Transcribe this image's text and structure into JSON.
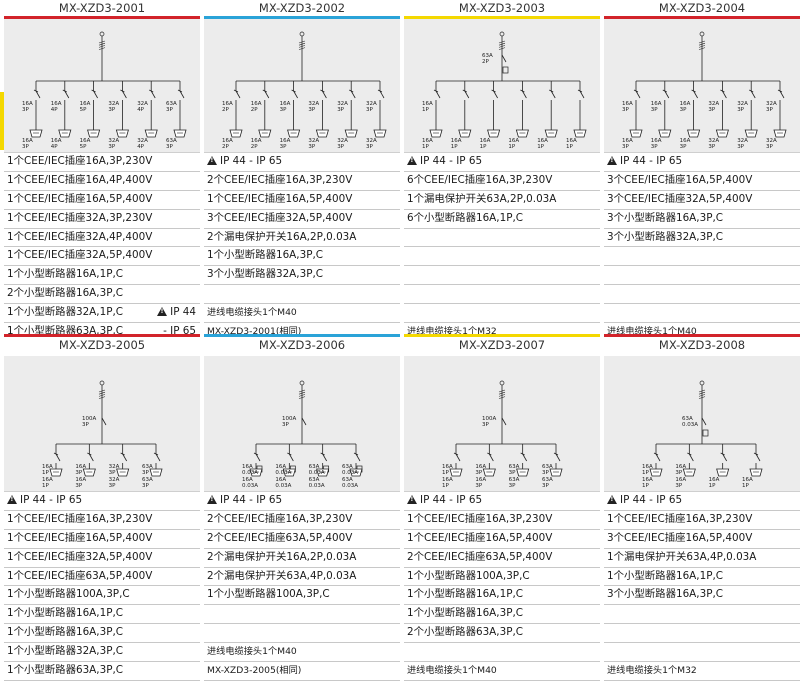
{
  "colors": {
    "red": "#d2232a",
    "blue": "#2aa3d8",
    "yellow": "#f4d800",
    "panel": "#ececec"
  },
  "icons": {
    "warning": "warning-triangle-icon"
  },
  "products": [
    {
      "code": "MX-XZD3-2001",
      "rows": [
        {
          "text": "1个CEE/IEC插座16A,3P,230V"
        },
        {
          "text": "1个CEE/IEC插座16A,4P,400V"
        },
        {
          "text": "1个CEE/IEC插座16A,5P,400V"
        },
        {
          "text": "1个CEE/IEC插座32A,3P,230V"
        },
        {
          "text": "1个CEE/IEC插座32A,4P,400V"
        },
        {
          "text": "1个CEE/IEC插座32A,5P,400V"
        },
        {
          "text": "1个小型断路器16A,1P,C"
        },
        {
          "text": "2个小型断路器16A,3P,C"
        },
        {
          "text": "1个小型断路器32A,1P,C",
          "right": "IP 44",
          "right_icon": true
        },
        {
          "text": "1个小型断路器63A,3P,C",
          "right": "- IP 65"
        }
      ],
      "diagram": {
        "type": "a",
        "branch_labels": [
          "16A 3P",
          "16A 4P",
          "16A 5P",
          "32A 3P",
          "32A 4P",
          "63A 3P"
        ]
      }
    },
    {
      "code": "MX-XZD3-2002",
      "rows": [
        {
          "text": "IP 44 - IP 65",
          "icon": true
        },
        {
          "text": "2个CEE/IEC插座16A,3P,230V"
        },
        {
          "text": "1个CEE/IEC插座16A,5P,400V"
        },
        {
          "text": "3个CEE/IEC插座32A,5P,400V"
        },
        {
          "text": "2个漏电保护开关16A,2P,0.03A"
        },
        {
          "text": "1个小型断路器16A,3P,C"
        },
        {
          "text": "3个小型断路器32A,3P,C"
        },
        {
          "text": ""
        },
        {
          "text": "进线电缆接头1个M40",
          "small": true
        },
        {
          "text": "MX-XZD3-2001(相同)",
          "small": true
        }
      ],
      "diagram": {
        "type": "b",
        "branch_labels": [
          "16A 2P",
          "16A 2P",
          "16A 3P",
          "32A 3P",
          "32A 3P",
          "32A 3P"
        ]
      }
    },
    {
      "code": "MX-XZD3-2003",
      "rows": [
        {
          "text": "IP 44 - IP 65",
          "icon": true
        },
        {
          "text": "6个CEE/IEC插座16A,3P,230V"
        },
        {
          "text": "1个漏电保护开关63A,2P,0.03A"
        },
        {
          "text": "6个小型断路器16A,1P,C"
        },
        {
          "text": ""
        },
        {
          "text": ""
        },
        {
          "text": ""
        },
        {
          "text": ""
        },
        {
          "text": ""
        },
        {
          "text": "进线电缆接头1个M32",
          "small": true
        }
      ],
      "diagram": {
        "type": "c",
        "top_label": "63A 2P",
        "branch_labels": [
          "16A 1P",
          "",
          "",
          "",
          "",
          ""
        ]
      }
    },
    {
      "code": "MX-XZD3-2004",
      "rows": [
        {
          "text": "IP 44 - IP 65",
          "icon": true
        },
        {
          "text": "3个CEE/IEC插座16A,5P,400V"
        },
        {
          "text": "3个CEE/IEC插座32A,5P,400V"
        },
        {
          "text": "3个小型断路器16A,3P,C"
        },
        {
          "text": "3个小型断路器32A,3P,C"
        },
        {
          "text": ""
        },
        {
          "text": ""
        },
        {
          "text": ""
        },
        {
          "text": ""
        },
        {
          "text": "进线电缆接头1个M40",
          "small": true
        }
      ],
      "diagram": {
        "type": "d",
        "branch_labels": [
          "16A 3P",
          "16A 3P",
          "16A 3P",
          "32A 3P",
          "32A 3P",
          "32A 3P"
        ]
      }
    },
    {
      "code": "MX-XZD3-2005",
      "rows": [
        {
          "text": "IP 44 - IP 65",
          "icon": true
        },
        {
          "text": "1个CEE/IEC插座16A,3P,230V"
        },
        {
          "text": "1个CEE/IEC插座16A,5P,400V"
        },
        {
          "text": "1个CEE/IEC插座32A,5P,400V"
        },
        {
          "text": "1个CEE/IEC插座63A,5P,400V"
        },
        {
          "text": "1个小型断路器100A,3P,C"
        },
        {
          "text": "1个小型断路器16A,1P,C"
        },
        {
          "text": "1个小型断路器16A,3P,C"
        },
        {
          "text": "1个小型断路器32A,3P,C"
        },
        {
          "text": "1个小型断路器63A,3P,C"
        }
      ],
      "diagram": {
        "type": "e",
        "top_label": "100A 3P",
        "branch_labels": [
          "16A 1P",
          "16A 3P",
          "32A 3P",
          "63A 3P"
        ]
      }
    },
    {
      "code": "MX-XZD3-2006",
      "rows": [
        {
          "text": "IP 44 - IP 65",
          "icon": true
        },
        {
          "text": "2个CEE/IEC插座16A,3P,230V"
        },
        {
          "text": "2个CEE/IEC插座63A,5P,400V"
        },
        {
          "text": "2个漏电保护开关16A,2P,0.03A"
        },
        {
          "text": "2个漏电保护开关63A,4P,0.03A"
        },
        {
          "text": "1个小型断路器100A,3P,C"
        },
        {
          "text": ""
        },
        {
          "text": ""
        },
        {
          "text": "进线电缆接头1个M40",
          "small": true
        },
        {
          "text": "MX-XZD3-2005(相同)",
          "small": true
        }
      ],
      "diagram": {
        "type": "f",
        "top_label": "100A 3P",
        "branch_labels": [
          "16A 0.03A",
          "16A 0.03A",
          "63A 0.03A",
          "63A 0.03A"
        ]
      }
    },
    {
      "code": "MX-XZD3-2007",
      "rows": [
        {
          "text": "IP 44 - IP 65",
          "icon": true
        },
        {
          "text": "1个CEE/IEC插座16A,3P,230V"
        },
        {
          "text": "1个CEE/IEC插座16A,5P,400V"
        },
        {
          "text": "2个CEE/IEC插座63A,5P,400V"
        },
        {
          "text": "1个小型断路器100A,3P,C"
        },
        {
          "text": "1个小型断路器16A,1P,C"
        },
        {
          "text": "1个小型断路器16A,3P,C"
        },
        {
          "text": "2个小型断路器63A,3P,C"
        },
        {
          "text": ""
        },
        {
          "text": "进线电缆接头1个M40",
          "small": true
        }
      ],
      "diagram": {
        "type": "g",
        "top_label": "100A 3P",
        "branch_labels": [
          "16A 1P",
          "16A 3P",
          "63A 3P",
          "63A 3P"
        ]
      }
    },
    {
      "code": "MX-XZD3-2008",
      "rows": [
        {
          "text": "IP 44 - IP 65",
          "icon": true
        },
        {
          "text": "1个CEE/IEC插座16A,3P,230V"
        },
        {
          "text": "3个CEE/IEC插座16A,5P,400V"
        },
        {
          "text": "1个漏电保护开关63A,4P,0.03A"
        },
        {
          "text": "1个小型断路器16A,1P,C"
        },
        {
          "text": "3个小型断路器16A,3P,C"
        },
        {
          "text": ""
        },
        {
          "text": ""
        },
        {
          "text": ""
        },
        {
          "text": "进线电缆接头1个M32",
          "small": true
        }
      ],
      "diagram": {
        "type": "h",
        "top_label": "63A 0.03A",
        "branch_labels": [
          "16A 1P",
          "16A 3P",
          "",
          ""
        ]
      }
    }
  ]
}
